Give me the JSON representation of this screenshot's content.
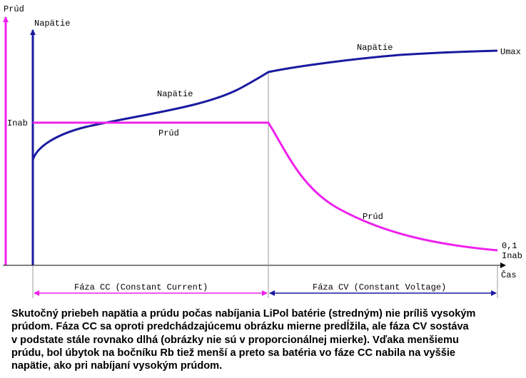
{
  "colors": {
    "voltage": "#1a1aa0",
    "current": "#ee22ee",
    "axis": "#000000",
    "divider": "#999999",
    "background": "#ffffff"
  },
  "axes": {
    "current_axis_label": "Prúd",
    "voltage_axis_label": "Napätie",
    "time_axis_label": "Čas",
    "inab_tick_label": "Inab",
    "umax_label": "Umax",
    "final_current_label_line1": "0,1",
    "final_current_label_line2": "Inab"
  },
  "curve_labels": {
    "voltage_cc": "Napätie",
    "current_cc": "Prúd",
    "voltage_cv": "Napätie",
    "current_cv": "Prúd"
  },
  "phases": {
    "cc_label": "Fáza CC (Constant Current)",
    "cv_label": "Fáza CV (Constant Voltage)"
  },
  "caption": {
    "lines": [
      "Skutočný priebeh napätia a prúdu počas nabíjania LiPol batérie (stredným) nie príliš vysokým",
      "prúdom. Fáza CC sa oproti predchádzajúcemu obrázku mierne predĺžila, ale fáza CV sostáva",
      "v podstate stále rovnako dlhá (obrázky nie sú v proporcionálnej mierke). Vďaka menšiemu",
      "prúdu, bol úbytok na bočníku Rb tiež menší a preto sa batéria vo fáze CC nabila na vyššie",
      "napätie, ako pri nabíjaní vysokým prúdom."
    ]
  }
}
